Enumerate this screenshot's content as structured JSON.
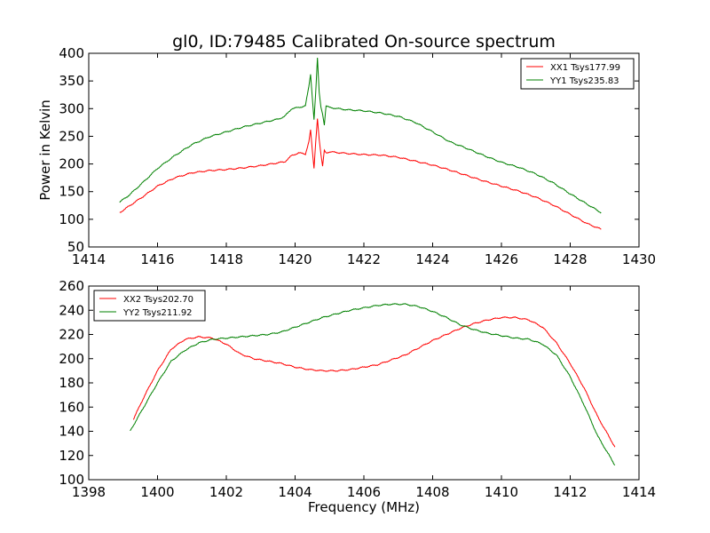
{
  "figure": {
    "title": "gl0, ID:79485 Calibrated On-source spectrum",
    "xlabel": "Frequency (MHz)"
  },
  "chart_data": [
    {
      "type": "line",
      "title": "gl0, ID:79485 Calibrated On-source spectrum",
      "ylabel": "Power in Kelvin",
      "xlabel": "",
      "xlim": [
        1414,
        1430
      ],
      "ylim": [
        50,
        400
      ],
      "x_ticks": [
        1414,
        1416,
        1418,
        1420,
        1422,
        1424,
        1426,
        1428,
        1430
      ],
      "y_ticks": [
        50,
        100,
        150,
        200,
        250,
        300,
        350,
        400
      ],
      "grid": false,
      "legend": "top-right",
      "series": [
        {
          "name": "XX1 Tsys177.99",
          "color": "#ff0000",
          "points": [
            [
              1414.9,
              112
            ],
            [
              1415.2,
              125
            ],
            [
              1415.6,
              142
            ],
            [
              1416.0,
              160
            ],
            [
              1416.5,
              175
            ],
            [
              1417.0,
              184
            ],
            [
              1417.5,
              188
            ],
            [
              1418.0,
              190
            ],
            [
              1418.5,
              193
            ],
            [
              1419.0,
              197
            ],
            [
              1419.5,
              202
            ],
            [
              1419.7,
              204
            ],
            [
              1419.9,
              215
            ],
            [
              1420.1,
              220
            ],
            [
              1420.3,
              218
            ],
            [
              1420.4,
              240
            ],
            [
              1420.45,
              262
            ],
            [
              1420.5,
              225
            ],
            [
              1420.55,
              192
            ],
            [
              1420.6,
              240
            ],
            [
              1420.65,
              282
            ],
            [
              1420.7,
              245
            ],
            [
              1420.75,
              218
            ],
            [
              1420.8,
              196
            ],
            [
              1420.85,
              225
            ],
            [
              1420.9,
              220
            ],
            [
              1421.0,
              222
            ],
            [
              1421.5,
              219
            ],
            [
              1422.0,
              217
            ],
            [
              1422.5,
              216
            ],
            [
              1423.0,
              212
            ],
            [
              1423.5,
              205
            ],
            [
              1424.0,
              198
            ],
            [
              1424.5,
              189
            ],
            [
              1425.0,
              179
            ],
            [
              1425.5,
              169
            ],
            [
              1426.0,
              160
            ],
            [
              1426.5,
              151
            ],
            [
              1427.0,
              140
            ],
            [
              1427.5,
              126
            ],
            [
              1428.0,
              109
            ],
            [
              1428.5,
              92
            ],
            [
              1428.9,
              82
            ]
          ]
        },
        {
          "name": "YY1 Tsys235.83",
          "color": "#008000",
          "points": [
            [
              1414.9,
              131
            ],
            [
              1415.2,
              145
            ],
            [
              1415.6,
              168
            ],
            [
              1416.0,
              192
            ],
            [
              1416.5,
              215
            ],
            [
              1417.0,
              235
            ],
            [
              1417.5,
              249
            ],
            [
              1418.0,
              258
            ],
            [
              1418.5,
              267
            ],
            [
              1419.0,
              274
            ],
            [
              1419.5,
              281
            ],
            [
              1419.7,
              286
            ],
            [
              1419.9,
              300
            ],
            [
              1420.1,
              302
            ],
            [
              1420.3,
              305
            ],
            [
              1420.4,
              340
            ],
            [
              1420.45,
              362
            ],
            [
              1420.5,
              320
            ],
            [
              1420.55,
              280
            ],
            [
              1420.6,
              330
            ],
            [
              1420.65,
              392
            ],
            [
              1420.7,
              330
            ],
            [
              1420.75,
              303
            ],
            [
              1420.8,
              290
            ],
            [
              1420.85,
              270
            ],
            [
              1420.9,
              305
            ],
            [
              1421.0,
              302
            ],
            [
              1421.5,
              298
            ],
            [
              1422.0,
              296
            ],
            [
              1422.5,
              292
            ],
            [
              1423.0,
              286
            ],
            [
              1423.5,
              275
            ],
            [
              1424.0,
              258
            ],
            [
              1424.5,
              240
            ],
            [
              1425.0,
              228
            ],
            [
              1425.5,
              215
            ],
            [
              1426.0,
              203
            ],
            [
              1426.5,
              194
            ],
            [
              1427.0,
              182
            ],
            [
              1427.5,
              166
            ],
            [
              1428.0,
              146
            ],
            [
              1428.5,
              127
            ],
            [
              1428.9,
              112
            ]
          ]
        }
      ]
    },
    {
      "type": "line",
      "title": "",
      "ylabel": "",
      "xlabel": "Frequency (MHz)",
      "xlim": [
        1398,
        1414
      ],
      "ylim": [
        100,
        260
      ],
      "x_ticks": [
        1398,
        1400,
        1402,
        1404,
        1406,
        1408,
        1410,
        1412,
        1414
      ],
      "y_ticks": [
        100,
        120,
        140,
        160,
        180,
        200,
        220,
        240,
        260
      ],
      "grid": false,
      "legend": "top-left",
      "series": [
        {
          "name": "XX2 Tsys202.70",
          "color": "#ff0000",
          "points": [
            [
              1399.3,
              150
            ],
            [
              1399.6,
              168
            ],
            [
              1400.0,
              190
            ],
            [
              1400.4,
              208
            ],
            [
              1400.8,
              216
            ],
            [
              1401.2,
              218
            ],
            [
              1401.6,
              217
            ],
            [
              1402.0,
              212
            ],
            [
              1402.4,
              204
            ],
            [
              1402.8,
              200
            ],
            [
              1403.2,
              198
            ],
            [
              1403.6,
              196
            ],
            [
              1404.0,
              193
            ],
            [
              1404.4,
              191
            ],
            [
              1404.8,
              190
            ],
            [
              1405.2,
              190
            ],
            [
              1405.6,
              191
            ],
            [
              1406.0,
              193
            ],
            [
              1406.4,
              195
            ],
            [
              1406.8,
              199
            ],
            [
              1407.2,
              203
            ],
            [
              1407.6,
              209
            ],
            [
              1408.0,
              215
            ],
            [
              1408.4,
              220
            ],
            [
              1408.8,
              225
            ],
            [
              1409.2,
              229
            ],
            [
              1409.6,
              232
            ],
            [
              1410.0,
              234
            ],
            [
              1410.4,
              234
            ],
            [
              1410.8,
              232
            ],
            [
              1411.2,
              226
            ],
            [
              1411.6,
              213
            ],
            [
              1412.0,
              196
            ],
            [
              1412.4,
              176
            ],
            [
              1412.8,
              152
            ],
            [
              1413.3,
              127
            ]
          ]
        },
        {
          "name": "YY2 Tsys211.92",
          "color": "#008000",
          "points": [
            [
              1399.2,
              140
            ],
            [
              1399.6,
              160
            ],
            [
              1400.0,
              180
            ],
            [
              1400.4,
              198
            ],
            [
              1400.8,
              207
            ],
            [
              1401.2,
              213
            ],
            [
              1401.6,
              216
            ],
            [
              1402.0,
              217
            ],
            [
              1402.4,
              218
            ],
            [
              1402.8,
              219
            ],
            [
              1403.2,
              220
            ],
            [
              1403.6,
              222
            ],
            [
              1404.0,
              226
            ],
            [
              1404.4,
              230
            ],
            [
              1404.8,
              234
            ],
            [
              1405.2,
              237
            ],
            [
              1405.6,
              240
            ],
            [
              1406.0,
              242
            ],
            [
              1406.4,
              244
            ],
            [
              1406.8,
              245
            ],
            [
              1407.2,
              245
            ],
            [
              1407.6,
              243
            ],
            [
              1408.0,
              239
            ],
            [
              1408.4,
              234
            ],
            [
              1408.8,
              228
            ],
            [
              1409.2,
              224
            ],
            [
              1409.6,
              221
            ],
            [
              1410.0,
              219
            ],
            [
              1410.4,
              217
            ],
            [
              1410.8,
              216
            ],
            [
              1411.2,
              212
            ],
            [
              1411.6,
              203
            ],
            [
              1412.0,
              185
            ],
            [
              1412.4,
              162
            ],
            [
              1412.8,
              136
            ],
            [
              1413.3,
              112
            ]
          ]
        }
      ]
    }
  ]
}
